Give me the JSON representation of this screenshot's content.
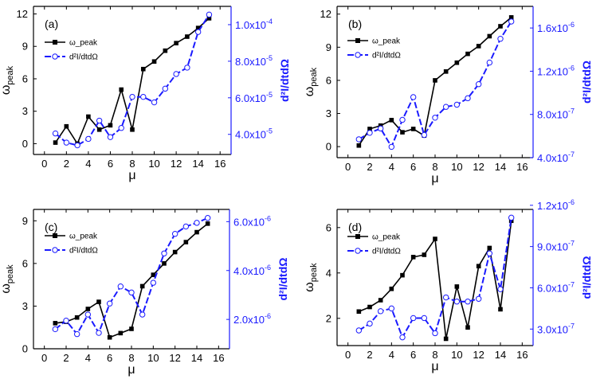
{
  "chart_data": [
    {
      "type": "line",
      "panel_label": "(a)",
      "xlabel": "μ",
      "ylabel": "ω",
      "ylabel_sub": "peak",
      "y2label": "d²I/dtdΩ",
      "xlim": [
        -1,
        17
      ],
      "ylim": [
        -1,
        12.7
      ],
      "y2lim": [
        2.9e-05,
        0.00011
      ],
      "xticks": [
        "0",
        "2",
        "4",
        "6",
        "8",
        "10",
        "12",
        "14",
        "16"
      ],
      "yticks": [
        "0",
        "3",
        "6",
        "9",
        "12"
      ],
      "y2ticks": [
        "4.0x10",
        "6.0x10",
        "8.0x10",
        "1.0x10"
      ],
      "y2ticks_exp": [
        "-5",
        "-5",
        "-5",
        "-4"
      ],
      "y2ticks_values": [
        4e-05,
        6e-05,
        8e-05,
        0.0001
      ],
      "legend": [
        "ω_peak",
        "d²I/dtdΩ"
      ],
      "x": [
        1,
        2,
        3,
        4,
        5,
        6,
        7,
        8,
        9,
        10,
        11,
        12,
        13,
        14,
        15
      ],
      "series": [
        {
          "name": "ω_peak",
          "axis": "left",
          "color": "#000000",
          "marker": "square",
          "values": [
            0.1,
            1.6,
            0.0,
            2.5,
            1.3,
            1.7,
            5.0,
            1.3,
            6.9,
            7.6,
            8.6,
            9.3,
            9.9,
            10.7,
            11.6
          ]
        },
        {
          "name": "d²I/dtdΩ",
          "axis": "right",
          "color": "#1a1aff",
          "marker": "circle",
          "values": [
            4.05e-05,
            3.55e-05,
            3.4e-05,
            3.75e-05,
            4.75e-05,
            3.85e-05,
            4.35e-05,
            6.05e-05,
            6.05e-05,
            5.75e-05,
            6.5e-05,
            7.3e-05,
            7.65e-05,
            9.6e-05,
            0.0001055
          ]
        }
      ]
    },
    {
      "type": "line",
      "panel_label": "(b)",
      "xlabel": "μ",
      "ylabel": "ω",
      "ylabel_sub": "peak",
      "y2label": "d²I/dtdΩ",
      "xlim": [
        -1,
        17
      ],
      "ylim": [
        -1,
        12.7
      ],
      "y2lim": [
        4e-07,
        1.8e-06
      ],
      "xticks": [
        "0",
        "2",
        "4",
        "6",
        "8",
        "10",
        "12",
        "14",
        "16"
      ],
      "yticks": [
        "0",
        "3",
        "6",
        "9",
        "12"
      ],
      "y2ticks": [
        "4.0x10",
        "8.0x10",
        "1.2x10",
        "1.6x10"
      ],
      "y2ticks_exp": [
        "-7",
        "-7",
        "-6",
        "-6"
      ],
      "y2ticks_values": [
        4e-07,
        8e-07,
        1.2e-06,
        1.6e-06
      ],
      "legend": [
        "ω_peak",
        "d²I/dtdΩ"
      ],
      "x": [
        1,
        2,
        3,
        4,
        5,
        6,
        7,
        8,
        9,
        10,
        11,
        12,
        13,
        14,
        15
      ],
      "series": [
        {
          "name": "ω_peak",
          "axis": "left",
          "color": "#000000",
          "marker": "square",
          "values": [
            0.1,
            1.6,
            1.9,
            2.4,
            1.3,
            1.6,
            1.0,
            6.0,
            6.8,
            7.6,
            8.4,
            9.1,
            10.0,
            10.9,
            11.7
          ]
        },
        {
          "name": "d²I/dtdΩ",
          "axis": "right",
          "color": "#1a1aff",
          "marker": "circle",
          "values": [
            5.7e-07,
            6.3e-07,
            6.7e-07,
            5e-07,
            7.5e-07,
            9.6e-07,
            6.1e-07,
            7.7e-07,
            8.7e-07,
            8.9e-07,
            9.5e-07,
            1.08e-06,
            1.28e-06,
            1.5e-06,
            1.66e-06
          ]
        }
      ]
    },
    {
      "type": "line",
      "panel_label": "(c)",
      "xlabel": "μ",
      "ylabel": "ω",
      "ylabel_sub": "peak",
      "y2label": "d²I/dtdΩ",
      "xlim": [
        -1,
        17
      ],
      "ylim": [
        0,
        9.8
      ],
      "y2lim": [
        8e-07,
        6.5e-06
      ],
      "xticks": [
        "0",
        "2",
        "4",
        "6",
        "8",
        "10",
        "12",
        "14",
        "16"
      ],
      "yticks": [
        "0",
        "3",
        "6",
        "9"
      ],
      "y2ticks": [
        "2.0x10",
        "4.0x10",
        "6.0x10"
      ],
      "y2ticks_exp": [
        "-6",
        "-6",
        "-6"
      ],
      "y2ticks_values": [
        2e-06,
        4e-06,
        6e-06
      ],
      "legend": [
        "ω_peak",
        "d²I/dtdΩ"
      ],
      "x": [
        1,
        2,
        3,
        4,
        5,
        6,
        7,
        8,
        9,
        10,
        11,
        12,
        13,
        14,
        15
      ],
      "series": [
        {
          "name": "ω_peak",
          "axis": "left",
          "color": "#000000",
          "marker": "square",
          "values": [
            1.8,
            1.9,
            2.2,
            2.8,
            3.3,
            0.8,
            1.1,
            1.4,
            4.4,
            5.2,
            6.0,
            6.8,
            7.5,
            8.2,
            8.8
          ]
        },
        {
          "name": "d²I/dtdΩ",
          "axis": "right",
          "color": "#1a1aff",
          "marker": "circle",
          "values": [
            1.6e-06,
            1.95e-06,
            1.4e-06,
            2.2e-06,
            1.45e-06,
            2.65e-06,
            3.35e-06,
            3.1e-06,
            2.2e-06,
            3.5e-06,
            4.7e-06,
            5.5e-06,
            5.8e-06,
            5.95e-06,
            6.15e-06
          ]
        }
      ]
    },
    {
      "type": "line",
      "panel_label": "(d)",
      "xlabel": "μ",
      "ylabel": "ω",
      "ylabel_sub": "peak",
      "y2label": "d²I/dtdΩ",
      "xlim": [
        -1,
        17
      ],
      "ylim": [
        0.8,
        6.8
      ],
      "y2lim": [
        1.8e-07,
        1.17e-06
      ],
      "xticks": [
        "0",
        "2",
        "4",
        "6",
        "8",
        "10",
        "12",
        "14",
        "16"
      ],
      "yticks": [
        "2",
        "4",
        "6"
      ],
      "y2ticks": [
        "3.0x10",
        "6.0x10",
        "9.0x10",
        "1.2x10"
      ],
      "y2ticks_exp": [
        "-7",
        "-7",
        "-7",
        "-6"
      ],
      "y2ticks_values": [
        3e-07,
        6e-07,
        9e-07,
        1.2e-06
      ],
      "legend": [
        "ω_peak",
        "d²I/dtdΩ"
      ],
      "x": [
        1,
        2,
        3,
        4,
        5,
        6,
        7,
        8,
        9,
        10,
        11,
        12,
        13,
        14,
        15
      ],
      "series": [
        {
          "name": "ω_peak",
          "axis": "left",
          "color": "#000000",
          "marker": "square",
          "values": [
            2.3,
            2.5,
            2.8,
            3.3,
            3.9,
            4.7,
            4.8,
            5.5,
            1.1,
            3.4,
            1.6,
            4.3,
            5.1,
            2.4,
            6.3
          ]
        },
        {
          "name": "d²I/dtdΩ",
          "axis": "right",
          "color": "#1a1aff",
          "marker": "circle",
          "values": [
            2.9e-07,
            3.4e-07,
            4.3e-07,
            4.5e-07,
            2.4e-07,
            3.8e-07,
            3.8e-07,
            2.7e-07,
            5.3e-07,
            5e-07,
            5e-07,
            5.2e-07,
            8.5e-07,
            5.9e-07,
            1.11e-06
          ]
        }
      ]
    }
  ]
}
